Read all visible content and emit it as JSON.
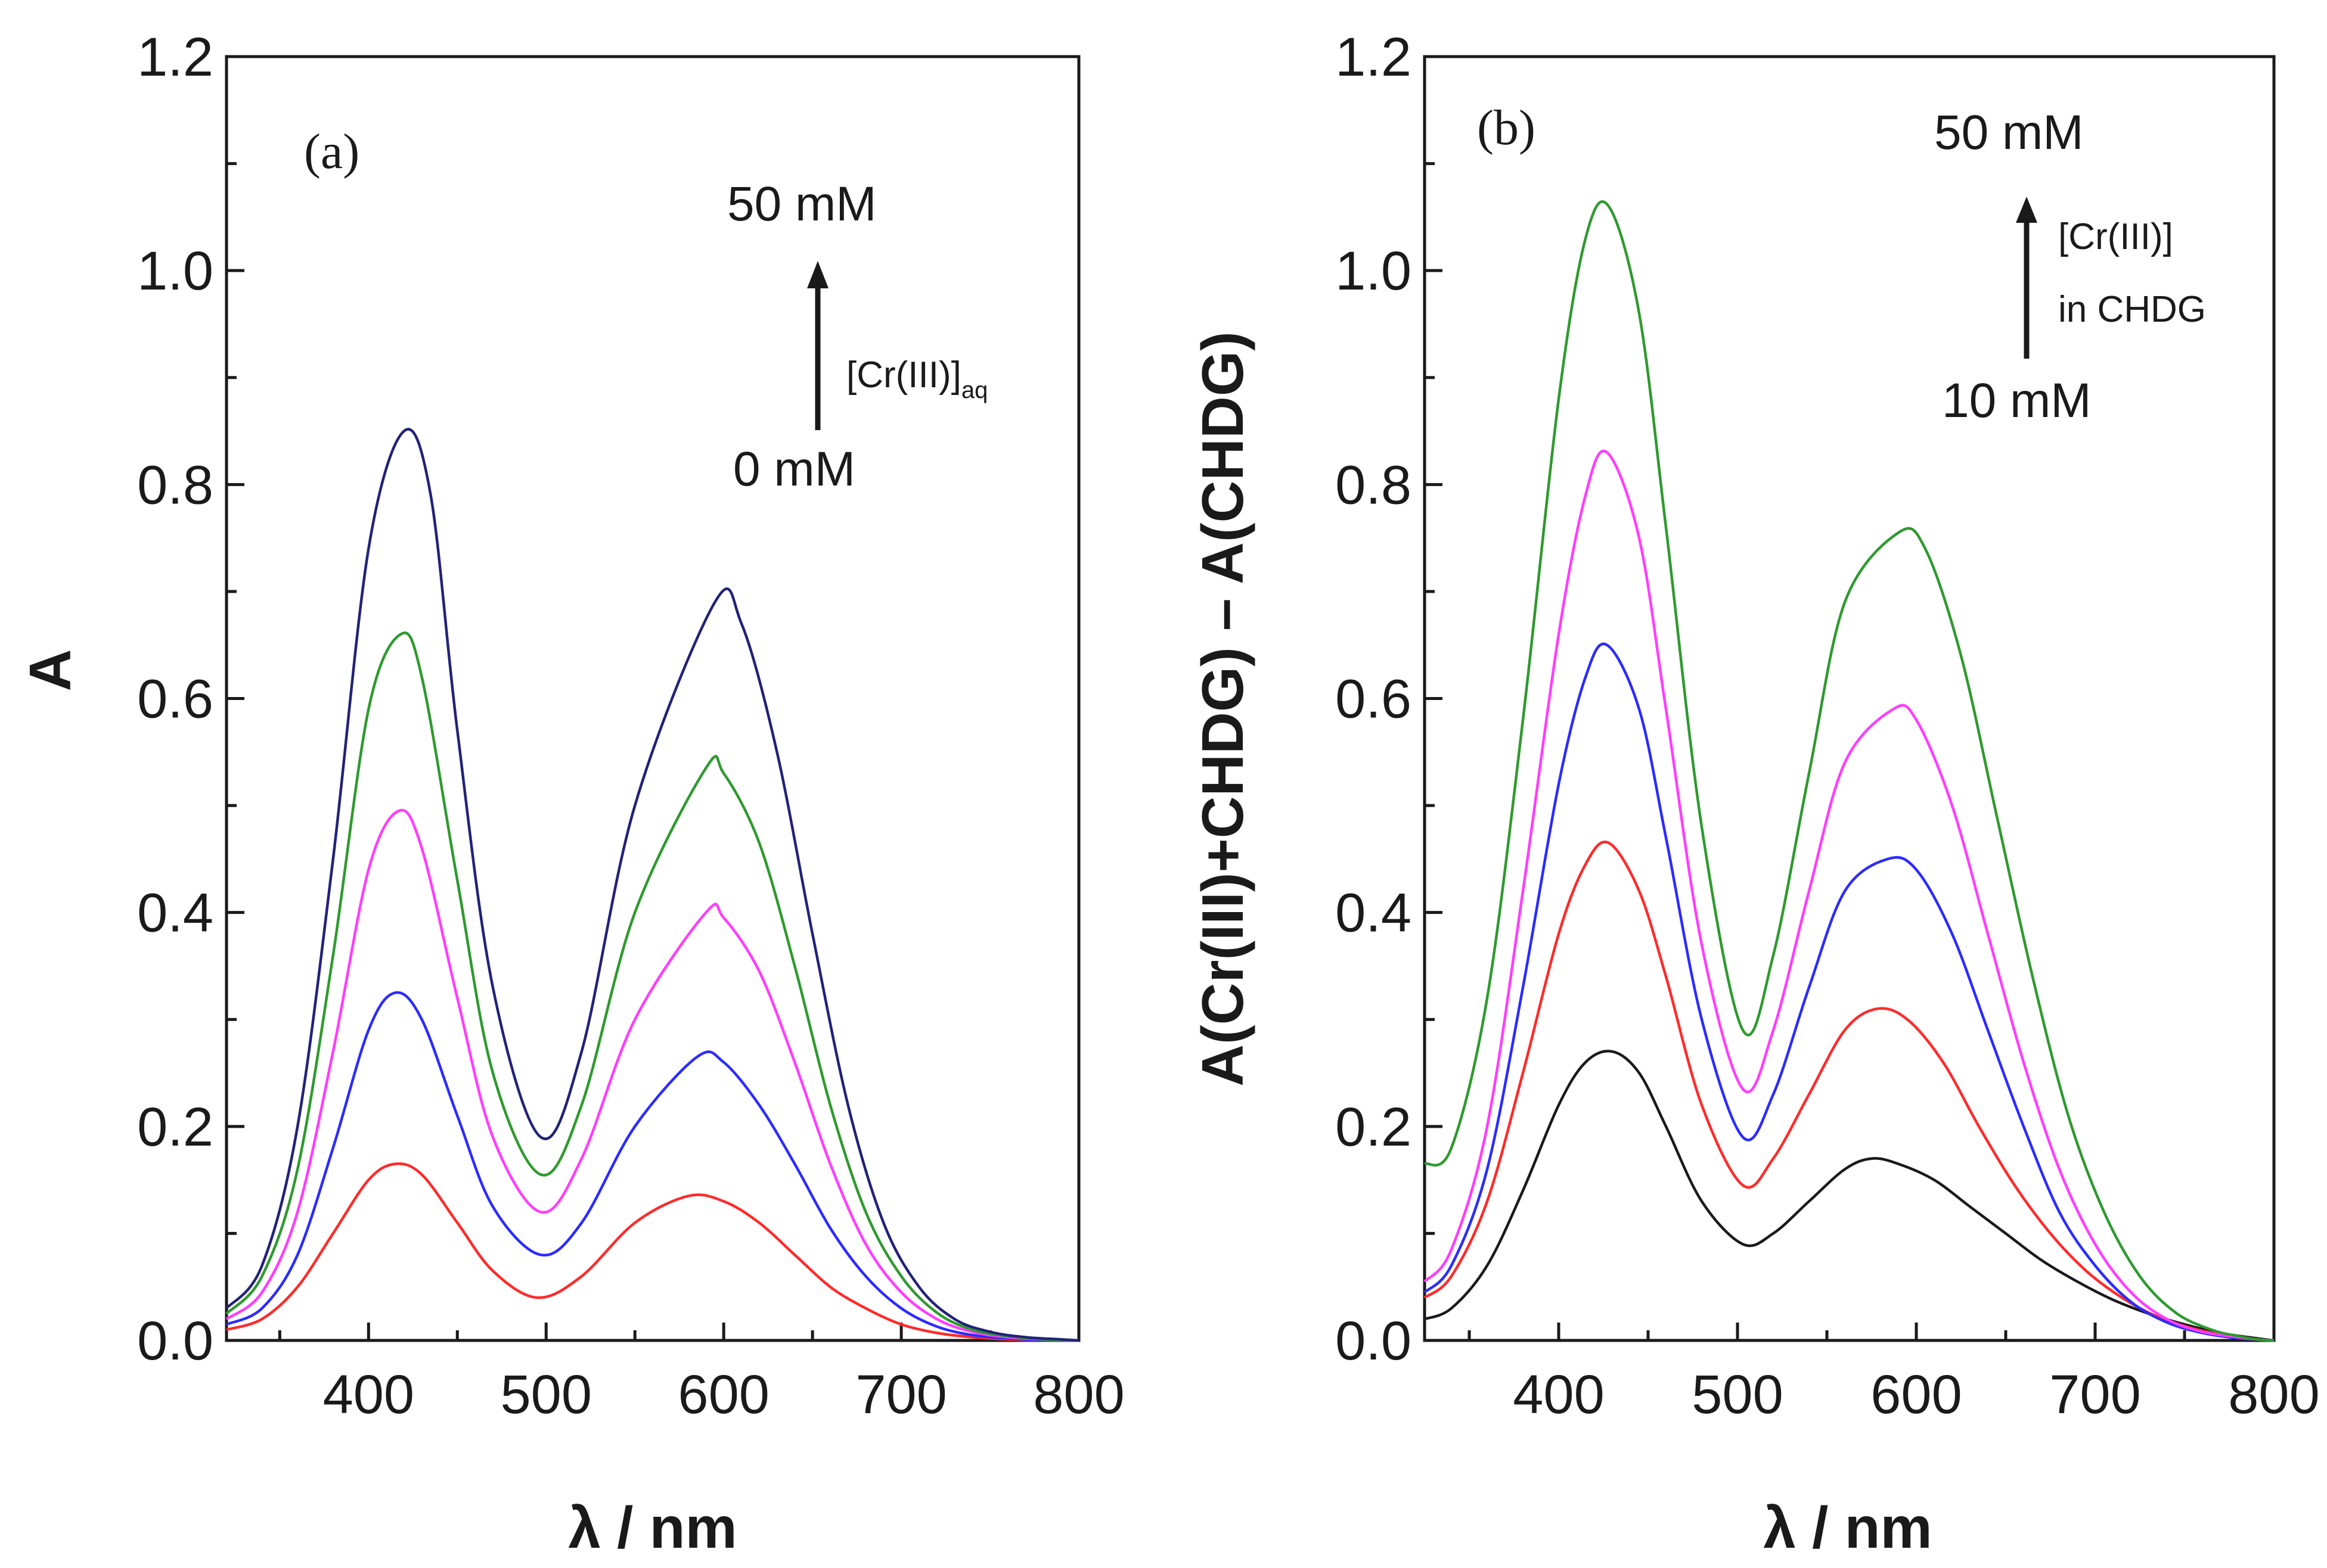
{
  "colors": {
    "black": "#1a1a1a",
    "red": "#ff2a2a",
    "blue": "#2b2bff",
    "magenta": "#ff3cff",
    "green": "#2e9a2e",
    "navy": "#22227a"
  },
  "chart_data": [
    {
      "type": "line",
      "panel_label": "(a)",
      "xlabel": "λ / nm",
      "ylabel": "A",
      "xlim": [
        320,
        800
      ],
      "ylim": [
        0,
        1.2
      ],
      "xticks": [
        "400",
        "500",
        "600",
        "700",
        "800"
      ],
      "yticks": [
        "0.0",
        "0.2",
        "0.4",
        "0.6",
        "0.8",
        "1.0",
        "1.2"
      ],
      "grid": false,
      "legend": "none",
      "annotation": {
        "top": "50 mM",
        "bottom": "0 mM",
        "label_main": "[Cr(III)]",
        "label_sub": "aq"
      },
      "series": [
        {
          "color": "red",
          "x": [
            320,
            340,
            360,
            380,
            400,
            415,
            430,
            450,
            470,
            495,
            520,
            550,
            580,
            600,
            620,
            640,
            660,
            680,
            700,
            720,
            740,
            760,
            780,
            800
          ],
          "values": [
            0.01,
            0.02,
            0.05,
            0.1,
            0.15,
            0.165,
            0.155,
            0.11,
            0.065,
            0.04,
            0.06,
            0.11,
            0.135,
            0.13,
            0.11,
            0.08,
            0.05,
            0.03,
            0.015,
            0.007,
            0.003,
            0.001,
            0.0,
            0.0
          ]
        },
        {
          "color": "blue",
          "x": [
            320,
            340,
            360,
            380,
            400,
            415,
            430,
            450,
            470,
            497,
            520,
            550,
            585,
            600,
            620,
            640,
            660,
            680,
            700,
            720,
            740,
            760,
            780,
            800
          ],
          "values": [
            0.015,
            0.03,
            0.08,
            0.18,
            0.29,
            0.325,
            0.3,
            0.21,
            0.125,
            0.08,
            0.11,
            0.2,
            0.265,
            0.26,
            0.22,
            0.165,
            0.105,
            0.06,
            0.03,
            0.013,
            0.005,
            0.002,
            0.0,
            0.0
          ]
        },
        {
          "color": "magenta",
          "x": [
            320,
            340,
            360,
            380,
            400,
            417,
            430,
            450,
            470,
            497,
            520,
            550,
            590,
            600,
            620,
            640,
            660,
            680,
            700,
            720,
            740,
            760,
            780,
            800
          ],
          "values": [
            0.02,
            0.045,
            0.12,
            0.27,
            0.44,
            0.495,
            0.46,
            0.32,
            0.19,
            0.12,
            0.17,
            0.3,
            0.4,
            0.395,
            0.345,
            0.26,
            0.165,
            0.09,
            0.045,
            0.02,
            0.008,
            0.003,
            0.001,
            0.0
          ]
        },
        {
          "color": "green",
          "x": [
            320,
            340,
            360,
            380,
            400,
            418,
            430,
            450,
            470,
            497,
            520,
            550,
            590,
            600,
            620,
            640,
            660,
            680,
            700,
            720,
            740,
            760,
            780,
            800
          ],
          "values": [
            0.025,
            0.06,
            0.16,
            0.36,
            0.59,
            0.66,
            0.62,
            0.43,
            0.25,
            0.155,
            0.22,
            0.4,
            0.535,
            0.53,
            0.465,
            0.35,
            0.22,
            0.12,
            0.06,
            0.026,
            0.01,
            0.004,
            0.001,
            0.0
          ]
        },
        {
          "color": "navy",
          "x": [
            320,
            340,
            360,
            380,
            400,
            420,
            435,
            450,
            470,
            497,
            520,
            550,
            595,
            610,
            630,
            650,
            670,
            690,
            710,
            730,
            750,
            770,
            790,
            800
          ],
          "values": [
            0.03,
            0.07,
            0.2,
            0.45,
            0.74,
            0.85,
            0.79,
            0.57,
            0.33,
            0.19,
            0.27,
            0.5,
            0.69,
            0.67,
            0.55,
            0.38,
            0.22,
            0.11,
            0.05,
            0.02,
            0.008,
            0.003,
            0.001,
            0.0
          ]
        }
      ]
    },
    {
      "type": "line",
      "panel_label": "(b)",
      "xlabel": "λ / nm",
      "ylabel": "A(Cr(III)+CHDG) – A(CHDG)",
      "xlim": [
        325,
        800
      ],
      "ylim": [
        0,
        1.2
      ],
      "xticks": [
        "400",
        "500",
        "600",
        "700",
        "800"
      ],
      "yticks": [
        "0.0",
        "0.2",
        "0.4",
        "0.6",
        "0.8",
        "1.0",
        "1.2"
      ],
      "grid": false,
      "legend": "none",
      "annotation": {
        "top": "50 mM",
        "bottom": "10 mM",
        "label_line1": "[Cr(III)]",
        "label_line2": "in CHDG"
      },
      "series": [
        {
          "color": "black",
          "x": [
            325,
            340,
            360,
            380,
            400,
            415,
            430,
            445,
            460,
            480,
            503,
            520,
            540,
            560,
            575,
            590,
            610,
            630,
            650,
            670,
            690,
            710,
            730,
            750,
            770,
            790,
            800
          ],
          "values": [
            0.02,
            0.03,
            0.07,
            0.14,
            0.22,
            0.26,
            0.27,
            0.25,
            0.2,
            0.13,
            0.09,
            0.1,
            0.13,
            0.16,
            0.17,
            0.165,
            0.15,
            0.125,
            0.1,
            0.075,
            0.055,
            0.038,
            0.025,
            0.015,
            0.007,
            0.002,
            0.0
          ]
        },
        {
          "color": "red",
          "x": [
            325,
            340,
            360,
            380,
            400,
            415,
            428,
            445,
            460,
            480,
            503,
            520,
            540,
            560,
            578,
            595,
            615,
            635,
            655,
            675,
            695,
            715,
            735,
            755,
            775,
            790,
            800
          ],
          "values": [
            0.04,
            0.06,
            0.13,
            0.25,
            0.38,
            0.445,
            0.465,
            0.42,
            0.34,
            0.22,
            0.145,
            0.17,
            0.23,
            0.29,
            0.31,
            0.3,
            0.26,
            0.2,
            0.145,
            0.1,
            0.065,
            0.04,
            0.022,
            0.011,
            0.004,
            0.001,
            0.0
          ]
        },
        {
          "color": "blue",
          "x": [
            325,
            340,
            360,
            380,
            400,
            415,
            427,
            445,
            460,
            480,
            503,
            520,
            540,
            560,
            584,
            600,
            620,
            640,
            660,
            680,
            700,
            720,
            740,
            760,
            780,
            790,
            800
          ],
          "values": [
            0.045,
            0.07,
            0.16,
            0.33,
            0.52,
            0.62,
            0.65,
            0.59,
            0.47,
            0.3,
            0.19,
            0.23,
            0.33,
            0.42,
            0.45,
            0.44,
            0.38,
            0.29,
            0.2,
            0.12,
            0.07,
            0.036,
            0.017,
            0.007,
            0.002,
            0.001,
            0.0
          ]
        },
        {
          "color": "magenta",
          "x": [
            325,
            340,
            360,
            380,
            400,
            415,
            427,
            445,
            460,
            480,
            503,
            520,
            540,
            560,
            587,
            600,
            620,
            640,
            660,
            680,
            700,
            720,
            740,
            760,
            780,
            790,
            800
          ],
          "values": [
            0.055,
            0.085,
            0.2,
            0.42,
            0.66,
            0.79,
            0.83,
            0.75,
            0.59,
            0.37,
            0.235,
            0.29,
            0.42,
            0.54,
            0.59,
            0.58,
            0.5,
            0.38,
            0.26,
            0.16,
            0.09,
            0.045,
            0.02,
            0.008,
            0.003,
            0.001,
            0.0
          ]
        },
        {
          "color": "green",
          "x": [
            325,
            340,
            360,
            380,
            400,
            415,
            428,
            445,
            460,
            480,
            503,
            520,
            540,
            560,
            590,
            605,
            625,
            645,
            665,
            685,
            705,
            725,
            745,
            765,
            780,
            790,
            800
          ],
          "values": [
            0.165,
            0.18,
            0.32,
            0.58,
            0.88,
            1.03,
            1.06,
            0.96,
            0.76,
            0.48,
            0.29,
            0.36,
            0.53,
            0.69,
            0.755,
            0.74,
            0.64,
            0.49,
            0.34,
            0.21,
            0.12,
            0.06,
            0.026,
            0.01,
            0.004,
            0.001,
            0.0
          ]
        }
      ]
    }
  ]
}
